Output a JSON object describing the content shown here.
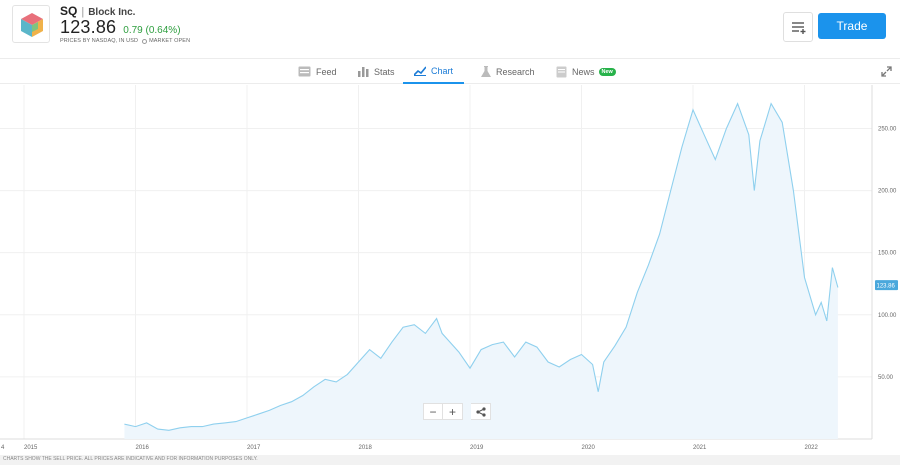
{
  "header": {
    "ticker": "SQ",
    "separator": "|",
    "company": "Block Inc.",
    "price": "123.86",
    "change": "0.79 (0.64%)",
    "meta": "PRICES BY NASDAQ, IN USD",
    "market_status": "MARKET OPEN",
    "trade_label": "Trade"
  },
  "tabs": [
    {
      "label": "Feed",
      "icon": "feed-icon"
    },
    {
      "label": "Stats",
      "icon": "stats-icon"
    },
    {
      "label": "Chart",
      "icon": "chart-icon",
      "active": true
    },
    {
      "label": "Research",
      "icon": "research-icon"
    },
    {
      "label": "News",
      "icon": "news-icon",
      "badge": "New"
    }
  ],
  "colors": {
    "accent": "#1b93ec",
    "positive": "#2e9e3f",
    "line": "#8fd0ee",
    "area": "#eef6fc"
  },
  "chart_data": {
    "type": "area",
    "x_ticks": [
      "4",
      "2015",
      "2016",
      "2017",
      "2018",
      "2019",
      "2020",
      "2021",
      "2022"
    ],
    "y_ticks": [
      "50.00",
      "100.00",
      "150.00",
      "200.00",
      "250.00"
    ],
    "y_ticks_values": [
      50,
      100,
      150,
      200,
      250
    ],
    "ylim": [
      0,
      285
    ],
    "xlim": [
      2014.9,
      2022.6
    ],
    "current_value": 123.86,
    "current_label": "123.86",
    "series": [
      {
        "x": [
          2015.9,
          2016.0,
          2016.1,
          2016.2,
          2016.3,
          2016.4,
          2016.5,
          2016.6,
          2016.7,
          2016.8,
          2016.9,
          2017.0,
          2017.1,
          2017.2,
          2017.3,
          2017.4,
          2017.5,
          2017.6,
          2017.7,
          2017.8,
          2017.9,
          2018.0,
          2018.1,
          2018.2,
          2018.3,
          2018.4,
          2018.5,
          2018.6,
          2018.7,
          2018.75,
          2018.8,
          2018.9,
          2019.0,
          2019.1,
          2019.2,
          2019.3,
          2019.4,
          2019.5,
          2019.6,
          2019.7,
          2019.8,
          2019.9,
          2020.0,
          2020.1,
          2020.15,
          2020.2,
          2020.3,
          2020.4,
          2020.5,
          2020.6,
          2020.7,
          2020.8,
          2020.9,
          2021.0,
          2021.1,
          2021.2,
          2021.3,
          2021.4,
          2021.5,
          2021.55,
          2021.6,
          2021.7,
          2021.8,
          2021.9,
          2022.0,
          2022.1,
          2022.15,
          2022.2,
          2022.25,
          2022.3
        ],
        "y": [
          12,
          10,
          13,
          8,
          7,
          9,
          10,
          10,
          12,
          13,
          14,
          17,
          20,
          23,
          27,
          30,
          35,
          42,
          48,
          46,
          52,
          62,
          72,
          65,
          78,
          90,
          92,
          85,
          97,
          85,
          80,
          70,
          57,
          72,
          76,
          78,
          66,
          78,
          74,
          62,
          58,
          64,
          68,
          60,
          38,
          62,
          75,
          90,
          118,
          140,
          165,
          200,
          235,
          265,
          245,
          225,
          250,
          270,
          245,
          200,
          240,
          270,
          255,
          200,
          130,
          100,
          110,
          95,
          138,
          122
        ]
      }
    ]
  },
  "zoom": {
    "minus": "−",
    "plus": "+"
  },
  "footer": "CHARTS SHOW THE SELL PRICE. ALL PRICES ARE INDICATIVE AND FOR INFORMATION PURPOSES ONLY."
}
